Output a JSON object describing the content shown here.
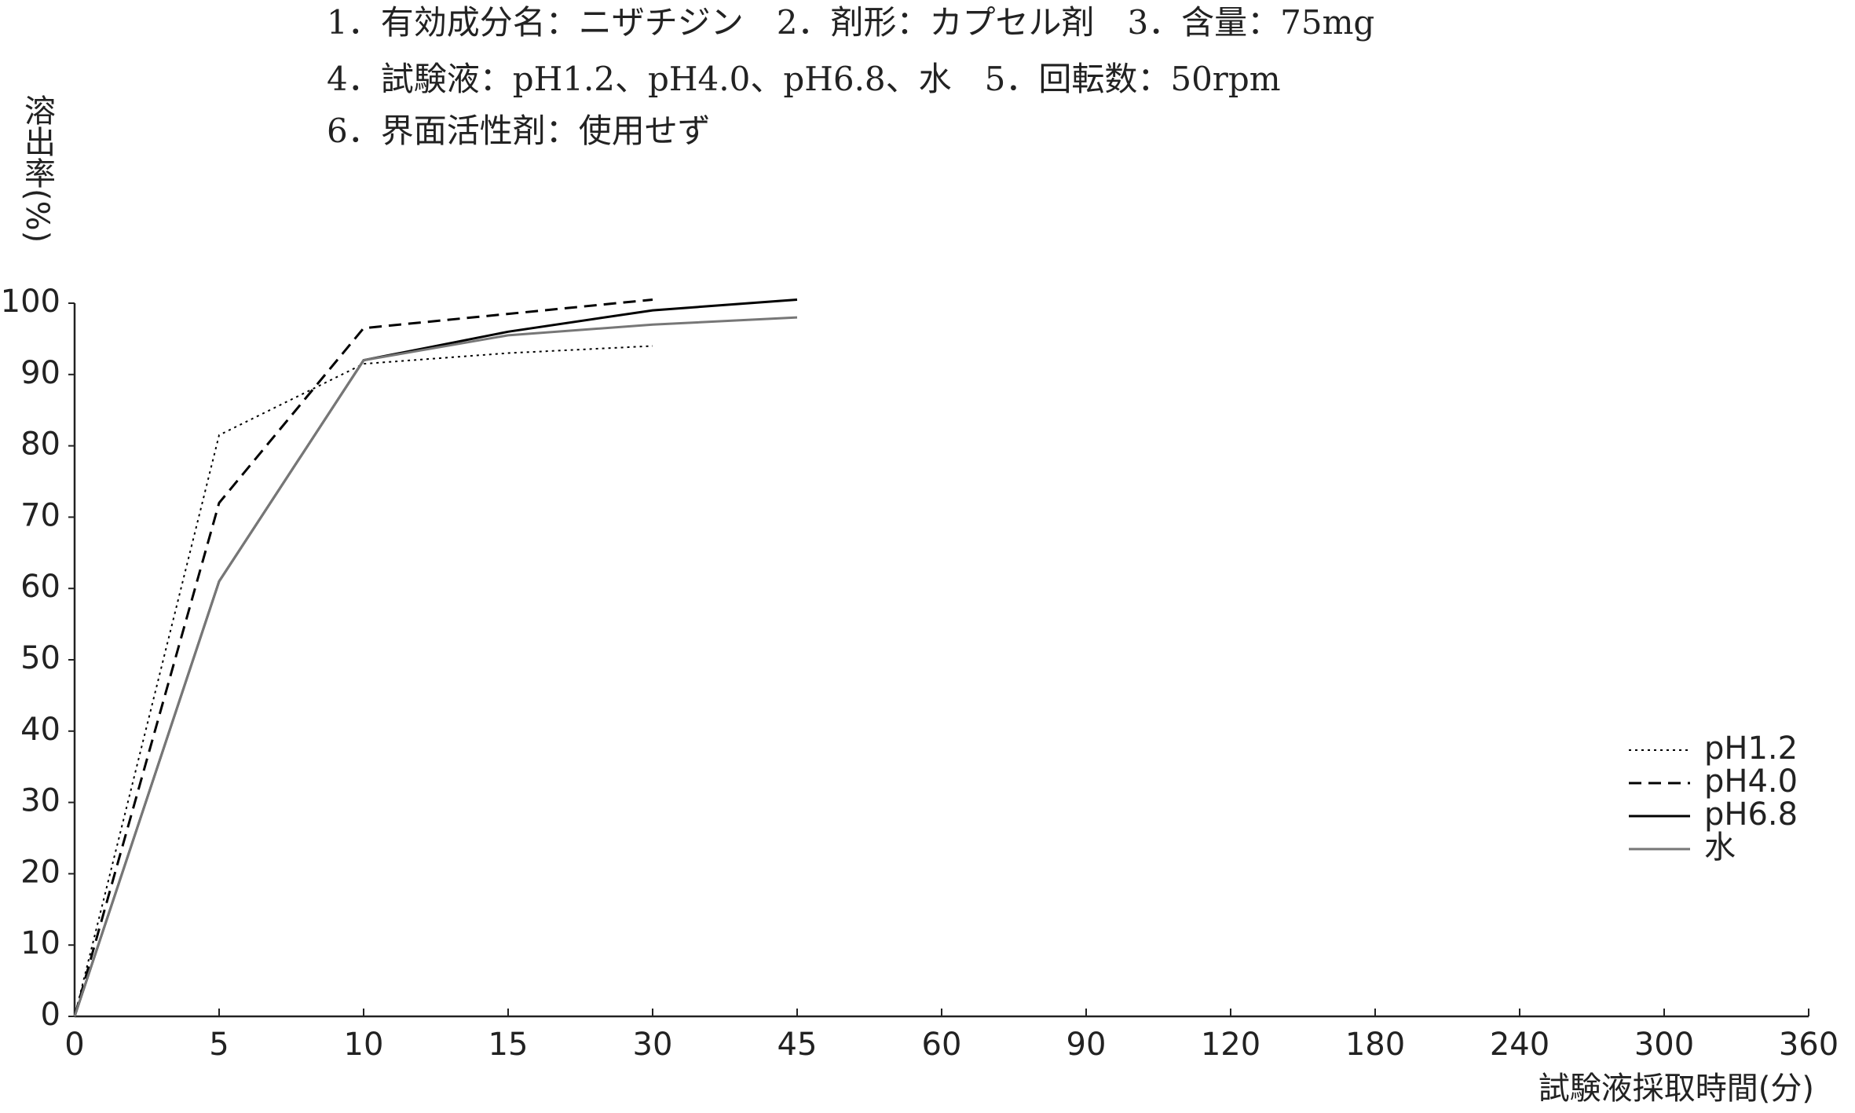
{
  "chart_data": {
    "type": "line",
    "annotations": [
      "1．有効成分名：ニザチジン　2．剤形：カプセル剤　3．含量：75mg",
      "4．試験液：pH1.2、pH4.0、pH6.8、水　5．回転数：50rpm",
      "6．界面活性剤：使用せず"
    ],
    "y_label": "溶出率(%)",
    "x_label": "試験液採取時間(分)",
    "categories": [
      "0",
      "5",
      "10",
      "15",
      "30",
      "45",
      "60",
      "90",
      "120",
      "180",
      "240",
      "300",
      "360"
    ],
    "series": [
      {
        "name": "pH1.2",
        "color": "#000000",
        "dash": "dotted",
        "values": [
          0,
          81.5,
          91.5,
          93,
          94,
          null,
          null,
          null,
          null,
          null,
          null,
          null,
          null
        ]
      },
      {
        "name": "pH4.0",
        "color": "#000000",
        "dash": "dashed",
        "values": [
          0,
          72,
          96.5,
          98.5,
          100.5,
          null,
          null,
          null,
          null,
          null,
          null,
          null,
          null
        ]
      },
      {
        "name": "pH6.8",
        "color": "#000000",
        "dash": "solid",
        "values": [
          0,
          61,
          92,
          96,
          99,
          100.5,
          null,
          null,
          null,
          null,
          null,
          null,
          null
        ]
      },
      {
        "name": "水",
        "color": "#777777",
        "dash": "solid",
        "values": [
          0,
          61,
          92,
          95.5,
          97,
          98,
          null,
          null,
          null,
          null,
          null,
          null,
          null
        ]
      }
    ],
    "ylim": [
      0,
      100
    ],
    "yticks": [
      0,
      10,
      20,
      30,
      40,
      50,
      60,
      70,
      80,
      90,
      100
    ],
    "legend": "right"
  }
}
